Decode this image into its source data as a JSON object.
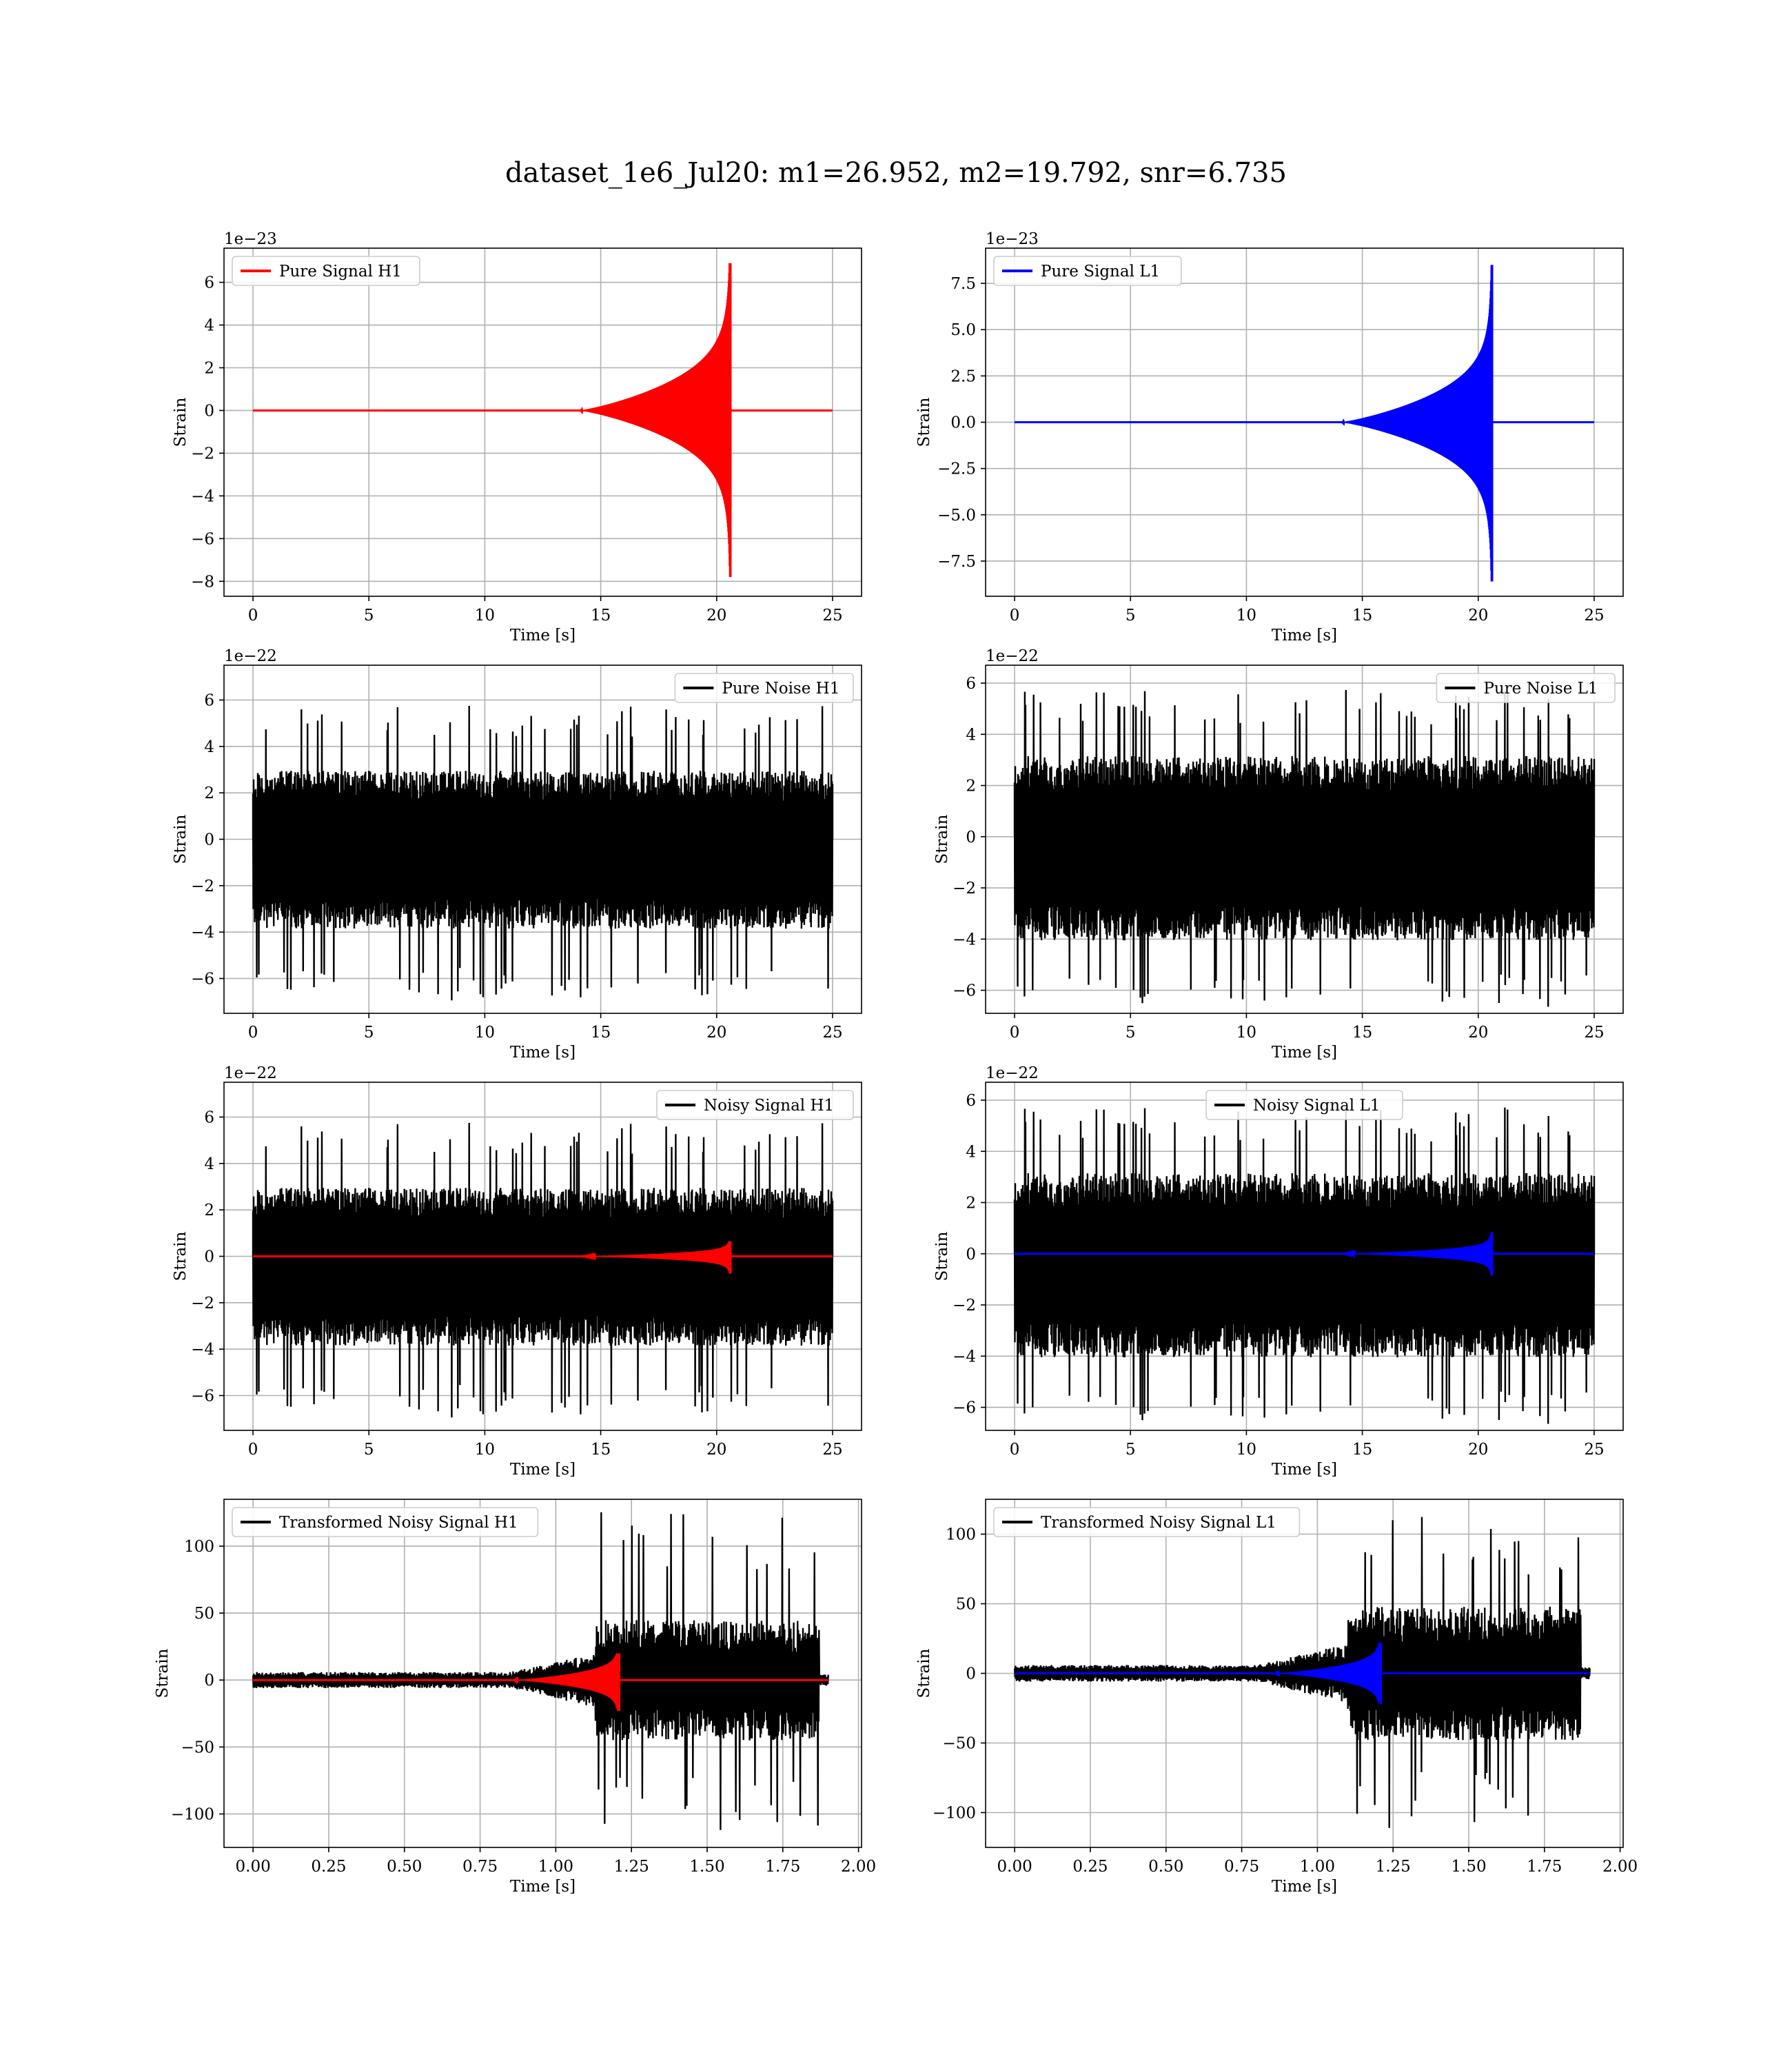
{
  "figure": {
    "title": "dataset_1e6_Jul20: m1=26.952, m2=19.792, snr=6.735",
    "colors": {
      "h1_signal": "#ff0000",
      "l1_signal": "#0000ff",
      "noise": "#000000",
      "grid": "#b0b0b0"
    }
  },
  "chart_data": [
    {
      "id": "pure-signal-h1",
      "type": "line",
      "column": 0,
      "row": 0,
      "offset_text": "1e−23",
      "xlabel": "Time [s]",
      "ylabel": "Strain",
      "xlim": [
        -1.25,
        26.25
      ],
      "ylim": [
        -8.7,
        7.6
      ],
      "xticks": [
        0,
        5,
        10,
        15,
        20,
        25
      ],
      "xtick_labels": [
        "0",
        "5",
        "10",
        "15",
        "20",
        "25"
      ],
      "yticks": [
        -8,
        -6,
        -4,
        -2,
        0,
        2,
        4,
        6
      ],
      "ytick_labels": [
        "−8",
        "−6",
        "−4",
        "−2",
        "0",
        "2",
        "4",
        "6"
      ],
      "grid": true,
      "legend_position": "upper-left",
      "series": [
        {
          "name": "Pure Signal H1",
          "color": "#ff0000",
          "kind": "chirp",
          "x_start": 0,
          "x_end": 25,
          "merger": 20.6,
          "amp": 2.0,
          "peak_hi": 6.9,
          "peak_lo": -7.8
        }
      ]
    },
    {
      "id": "pure-signal-l1",
      "type": "line",
      "column": 1,
      "row": 0,
      "offset_text": "1e−23",
      "xlabel": "Time [s]",
      "ylabel": "Strain",
      "xlim": [
        -1.25,
        26.25
      ],
      "ylim": [
        -9.4,
        9.4
      ],
      "xticks": [
        0,
        5,
        10,
        15,
        20,
        25
      ],
      "xtick_labels": [
        "0",
        "5",
        "10",
        "15",
        "20",
        "25"
      ],
      "yticks": [
        -7.5,
        -5.0,
        -2.5,
        0.0,
        2.5,
        5.0,
        7.5
      ],
      "ytick_labels": [
        "−7.5",
        "−5.0",
        "−2.5",
        "0.0",
        "2.5",
        "5.0",
        "7.5"
      ],
      "grid": true,
      "legend_position": "upper-left",
      "series": [
        {
          "name": "Pure Signal L1",
          "color": "#0000ff",
          "kind": "chirp",
          "x_start": 0,
          "x_end": 25,
          "merger": 20.6,
          "amp": 2.2,
          "peak_hi": 8.5,
          "peak_lo": -8.6
        }
      ]
    },
    {
      "id": "pure-noise-h1",
      "type": "line",
      "column": 0,
      "row": 1,
      "offset_text": "1e−22",
      "xlabel": "Time [s]",
      "ylabel": "Strain",
      "xlim": [
        -1.25,
        26.25
      ],
      "ylim": [
        -7.5,
        7.5
      ],
      "xticks": [
        0,
        5,
        10,
        15,
        20,
        25
      ],
      "xtick_labels": [
        "0",
        "5",
        "10",
        "15",
        "20",
        "25"
      ],
      "yticks": [
        -6,
        -4,
        -2,
        0,
        2,
        4,
        6
      ],
      "ytick_labels": [
        "−6",
        "−4",
        "−2",
        "0",
        "2",
        "4",
        "6"
      ],
      "grid": true,
      "legend_position": "upper-right",
      "series": [
        {
          "name": "Pure Noise H1",
          "color": "#000000",
          "kind": "noise",
          "x_start": 0,
          "x_end": 25,
          "core": 3.4,
          "spike_hi": 6.2,
          "spike_lo": -6.5,
          "seed": 11
        }
      ]
    },
    {
      "id": "pure-noise-l1",
      "type": "line",
      "column": 1,
      "row": 1,
      "offset_text": "1e−22",
      "xlabel": "Time [s]",
      "ylabel": "Strain",
      "xlim": [
        -1.25,
        26.25
      ],
      "ylim": [
        -6.9,
        6.7
      ],
      "xticks": [
        0,
        5,
        10,
        15,
        20,
        25
      ],
      "xtick_labels": [
        "0",
        "5",
        "10",
        "15",
        "20",
        "25"
      ],
      "yticks": [
        -6,
        -4,
        -2,
        0,
        2,
        4,
        6
      ],
      "ytick_labels": [
        "−6",
        "−4",
        "−2",
        "0",
        "2",
        "4",
        "6"
      ],
      "grid": true,
      "legend_position": "upper-right",
      "series": [
        {
          "name": "Pure Noise L1",
          "color": "#000000",
          "kind": "noise",
          "x_start": 0,
          "x_end": 25,
          "core": 3.6,
          "spike_hi": 6.2,
          "spike_lo": -6.2,
          "seed": 23
        }
      ]
    },
    {
      "id": "noisy-signal-h1",
      "type": "line",
      "column": 0,
      "row": 2,
      "offset_text": "1e−22",
      "xlabel": "Time [s]",
      "ylabel": "Strain",
      "xlim": [
        -1.25,
        26.25
      ],
      "ylim": [
        -7.5,
        7.5
      ],
      "xticks": [
        0,
        5,
        10,
        15,
        20,
        25
      ],
      "xtick_labels": [
        "0",
        "5",
        "10",
        "15",
        "20",
        "25"
      ],
      "yticks": [
        -6,
        -4,
        -2,
        0,
        2,
        4,
        6
      ],
      "ytick_labels": [
        "−6",
        "−4",
        "−2",
        "0",
        "2",
        "4",
        "6"
      ],
      "grid": true,
      "legend_position": "upper-right",
      "series": [
        {
          "name": "Noisy Signal H1",
          "color": "#000000",
          "kind": "noise",
          "x_start": 0,
          "x_end": 25,
          "core": 3.4,
          "spike_hi": 6.2,
          "spike_lo": -6.5,
          "seed": 11
        },
        {
          "name": "",
          "color": "#ff0000",
          "kind": "chirp",
          "x_start": 0,
          "x_end": 25,
          "merger": 20.6,
          "amp": 0.2,
          "peak_hi": 0.65,
          "peak_lo": -0.75
        }
      ]
    },
    {
      "id": "noisy-signal-l1",
      "type": "line",
      "column": 1,
      "row": 2,
      "offset_text": "1e−22",
      "xlabel": "Time [s]",
      "ylabel": "Strain",
      "xlim": [
        -1.25,
        26.25
      ],
      "ylim": [
        -6.9,
        6.7
      ],
      "xticks": [
        0,
        5,
        10,
        15,
        20,
        25
      ],
      "xtick_labels": [
        "0",
        "5",
        "10",
        "15",
        "20",
        "25"
      ],
      "yticks": [
        -6,
        -4,
        -2,
        0,
        2,
        4,
        6
      ],
      "ytick_labels": [
        "−6",
        "−4",
        "−2",
        "0",
        "2",
        "4",
        "6"
      ],
      "grid": true,
      "legend_position": "upper-center",
      "series": [
        {
          "name": "Noisy Signal L1",
          "color": "#000000",
          "kind": "noise",
          "x_start": 0,
          "x_end": 25,
          "core": 3.6,
          "spike_hi": 6.2,
          "spike_lo": -6.2,
          "seed": 23
        },
        {
          "name": "",
          "color": "#0000ff",
          "kind": "chirp",
          "x_start": 0,
          "x_end": 25,
          "merger": 20.6,
          "amp": 0.22,
          "peak_hi": 0.85,
          "peak_lo": -0.86
        }
      ]
    },
    {
      "id": "transformed-noisy-signal-h1",
      "type": "line",
      "column": 0,
      "row": 3,
      "offset_text": "",
      "xlabel": "Time [s]",
      "ylabel": "Strain",
      "xlim": [
        -0.096,
        2.01
      ],
      "ylim": [
        -125,
        135
      ],
      "xticks": [
        0,
        0.25,
        0.5,
        0.75,
        1.0,
        1.25,
        1.5,
        1.75,
        2.0
      ],
      "xtick_labels": [
        "0.00",
        "0.25",
        "0.50",
        "0.75",
        "1.00",
        "1.25",
        "1.50",
        "1.75",
        "2.00"
      ],
      "yticks": [
        -100,
        -50,
        0,
        50,
        100
      ],
      "ytick_labels": [
        "−100",
        "−50",
        "0",
        "50",
        "100"
      ],
      "grid": true,
      "legend_position": "upper-left",
      "series": [
        {
          "name": "Transformed Noisy Signal H1",
          "color": "#000000",
          "kind": "whitened",
          "x_start": 0,
          "x_end": 1.9,
          "ramp_start": 0.85,
          "jump": 1.13,
          "end": 1.87,
          "base": 6,
          "high": 45,
          "spike_hi": 128,
          "spike_lo": -112,
          "seed": 7
        },
        {
          "name": "",
          "color": "#ff0000",
          "kind": "chirp",
          "x_start": 0,
          "x_end": 1.9,
          "merger": 1.21,
          "amp": 8,
          "peak_hi": 20,
          "peak_lo": -23,
          "window": 0.35
        }
      ]
    },
    {
      "id": "transformed-noisy-signal-l1",
      "type": "line",
      "column": 1,
      "row": 3,
      "offset_text": "",
      "xlabel": "Time [s]",
      "ylabel": "Strain",
      "xlim": [
        -0.096,
        2.01
      ],
      "ylim": [
        -125,
        125
      ],
      "xticks": [
        0,
        0.25,
        0.5,
        0.75,
        1.0,
        1.25,
        1.5,
        1.75,
        2.0
      ],
      "xtick_labels": [
        "0.00",
        "0.25",
        "0.50",
        "0.75",
        "1.00",
        "1.25",
        "1.50",
        "1.75",
        "2.00"
      ],
      "yticks": [
        -100,
        -50,
        0,
        50,
        100
      ],
      "ytick_labels": [
        "−100",
        "−50",
        "0",
        "50",
        "100"
      ],
      "grid": true,
      "legend_position": "upper-left",
      "series": [
        {
          "name": "Transformed Noisy Signal L1",
          "color": "#000000",
          "kind": "whitened",
          "x_start": 0,
          "x_end": 1.9,
          "ramp_start": 0.8,
          "jump": 1.1,
          "end": 1.87,
          "base": 6,
          "high": 48,
          "spike_hi": 117,
          "spike_lo": -115,
          "seed": 19
        },
        {
          "name": "",
          "color": "#0000ff",
          "kind": "chirp",
          "x_start": 0,
          "x_end": 1.9,
          "merger": 1.21,
          "amp": 8,
          "peak_hi": 22,
          "peak_lo": -22,
          "window": 0.35
        }
      ]
    }
  ]
}
